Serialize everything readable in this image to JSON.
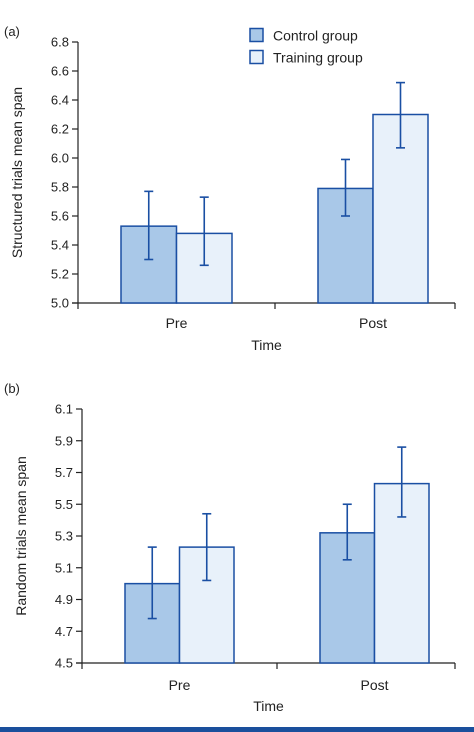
{
  "colors": {
    "control_fill": "#a9c8e8",
    "training_fill": "#e8f1fa",
    "bar_stroke": "#1a4fa3",
    "error_bar": "#1a4fa3",
    "rule": "#1a4f9c"
  },
  "chart_data": [
    {
      "panel_label": "(a)",
      "type": "bar",
      "ylabel": "Structured trials mean span",
      "xlabel": "Time",
      "categories": [
        "Pre",
        "Post"
      ],
      "ylim": [
        5.0,
        6.8
      ],
      "yticks": [
        "5.0",
        "5.2",
        "5.4",
        "5.6",
        "5.8",
        "6.0",
        "6.2",
        "6.4",
        "6.6",
        "6.8"
      ],
      "legend_position": "top-center",
      "series": [
        {
          "name": "Control group",
          "values": [
            5.53,
            5.79
          ],
          "err_low": [
            5.3,
            5.6
          ],
          "err_high": [
            5.77,
            5.99
          ]
        },
        {
          "name": "Training group",
          "values": [
            5.48,
            6.3
          ],
          "err_low": [
            5.26,
            6.07
          ],
          "err_high": [
            5.73,
            6.52
          ]
        }
      ]
    },
    {
      "panel_label": "(b)",
      "type": "bar",
      "ylabel": "Random trials mean span",
      "xlabel": "Time",
      "categories": [
        "Pre",
        "Post"
      ],
      "ylim": [
        4.5,
        6.1
      ],
      "yticks": [
        "4.5",
        "4.7",
        "4.9",
        "5.1",
        "5.3",
        "5.5",
        "5.7",
        "5.9",
        "6.1"
      ],
      "series": [
        {
          "name": "Control group",
          "values": [
            5.0,
            5.32
          ],
          "err_low": [
            4.78,
            5.15
          ],
          "err_high": [
            5.23,
            5.5
          ]
        },
        {
          "name": "Training group",
          "values": [
            5.23,
            5.63
          ],
          "err_low": [
            5.02,
            5.42
          ],
          "err_high": [
            5.44,
            5.86
          ]
        }
      ]
    }
  ]
}
